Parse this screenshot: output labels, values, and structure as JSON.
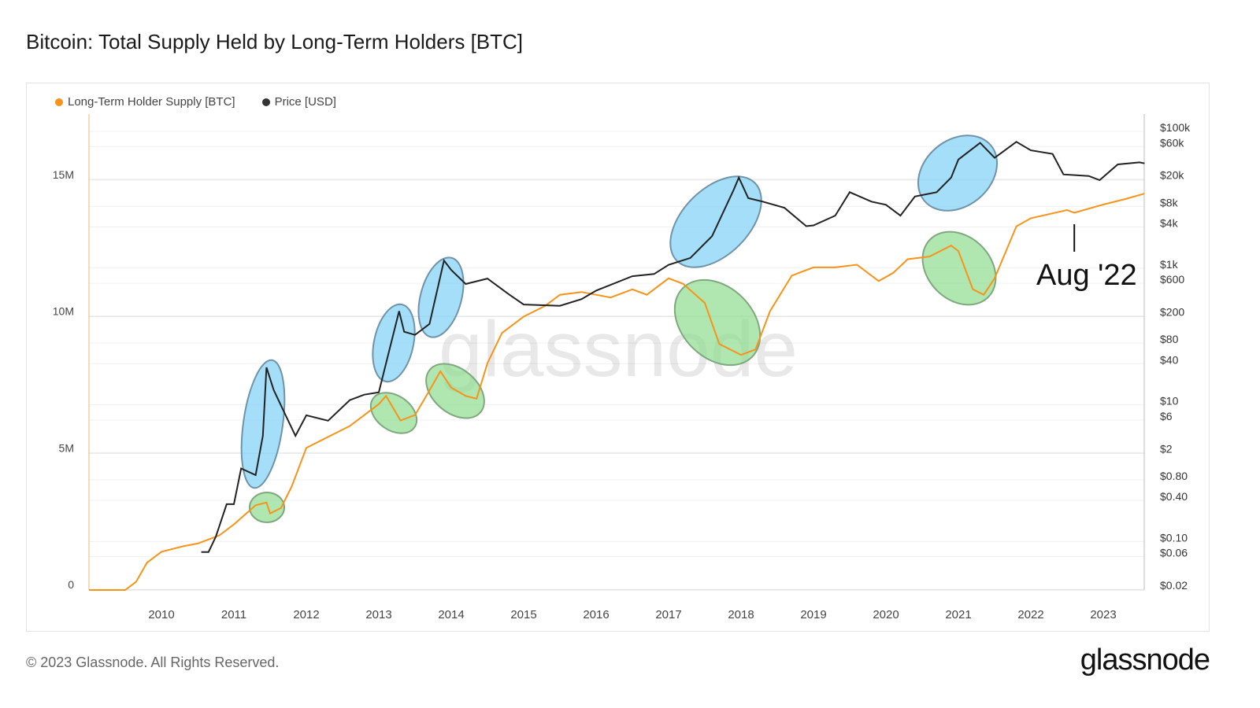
{
  "title": "Bitcoin: Total Supply Held by Long-Term Holders [BTC]",
  "footer": "© 2023 Glassnode. All Rights Reserved.",
  "logo": "glassnode",
  "watermark": "glassnode",
  "colors": {
    "lth": "#f7931a",
    "price": "#222222",
    "blue_highlight": "#7fd0f5",
    "green_highlight": "#8fdc8f"
  },
  "chart_data": {
    "type": "line",
    "title": "Bitcoin: Total Supply Held by Long-Term Holders [BTC]",
    "legend_position": "top-left",
    "grid": true,
    "x_ticks": [
      "2010",
      "2011",
      "2012",
      "2013",
      "2014",
      "2015",
      "2016",
      "2017",
      "2018",
      "2019",
      "2020",
      "2021",
      "2022",
      "2023"
    ],
    "xlim": [
      2009.0,
      2023.57
    ],
    "y_left": {
      "ticks": [
        "0",
        "5M",
        "10M",
        "15M"
      ],
      "ylim": [
        0,
        17.4
      ],
      "unit": "M BTC"
    },
    "y_right": {
      "scale": "log",
      "ticks": [
        "$100k",
        "$60k",
        "$20k",
        "$8k",
        "$4k",
        "$1k",
        "$600",
        "$200",
        "$80",
        "$40",
        "$10",
        "$6",
        "$2",
        "$0.80",
        "$0.40",
        "$0.10",
        "$0.06",
        "$0.02"
      ],
      "tick_values": [
        100000,
        60000,
        20000,
        8000,
        4000,
        1000,
        600,
        200,
        80,
        40,
        10,
        6,
        2,
        0.8,
        0.4,
        0.1,
        0.06,
        0.02
      ],
      "ylim": [
        0.02,
        100000
      ]
    },
    "series": [
      {
        "name": "Long-Term Holder Supply [BTC]",
        "axis": "left",
        "x": [
          2009.0,
          2009.5,
          2009.65,
          2009.8,
          2010.0,
          2010.3,
          2010.5,
          2010.8,
          2011.0,
          2011.3,
          2011.45,
          2011.5,
          2011.65,
          2011.8,
          2012.0,
          2012.3,
          2012.6,
          2013.0,
          2013.1,
          2013.3,
          2013.5,
          2013.7,
          2013.85,
          2014.0,
          2014.2,
          2014.35,
          2014.5,
          2014.7,
          2015.0,
          2015.3,
          2015.5,
          2015.8,
          2016.0,
          2016.2,
          2016.5,
          2016.7,
          2017.0,
          2017.2,
          2017.5,
          2017.7,
          2018.0,
          2018.2,
          2018.4,
          2018.7,
          2019.0,
          2019.3,
          2019.6,
          2019.9,
          2020.1,
          2020.3,
          2020.6,
          2020.9,
          2021.0,
          2021.2,
          2021.35,
          2021.5,
          2021.8,
          2022.0,
          2022.5,
          2022.6,
          2023.0,
          2023.3,
          2023.57
        ],
        "values": [
          0,
          0,
          0.3,
          1.0,
          1.4,
          1.6,
          1.7,
          2.0,
          2.4,
          3.1,
          3.2,
          2.8,
          3.0,
          3.8,
          5.2,
          5.6,
          6.0,
          6.8,
          7.1,
          6.2,
          6.4,
          7.3,
          8.0,
          7.4,
          7.1,
          7.0,
          8.3,
          9.4,
          10.0,
          10.4,
          10.8,
          10.9,
          10.8,
          10.7,
          11.0,
          10.8,
          11.4,
          11.2,
          10.5,
          9.0,
          8.6,
          8.8,
          10.2,
          11.5,
          11.8,
          11.8,
          11.9,
          11.3,
          11.6,
          12.1,
          12.2,
          12.6,
          12.4,
          11.0,
          10.8,
          11.4,
          13.3,
          13.6,
          13.9,
          13.8,
          14.1,
          14.3,
          14.5
        ]
      },
      {
        "name": "Price [USD]",
        "axis": "right",
        "x": [
          2010.55,
          2010.65,
          2010.75,
          2010.9,
          2011.0,
          2011.1,
          2011.3,
          2011.4,
          2011.45,
          2011.55,
          2011.75,
          2011.85,
          2012.0,
          2012.3,
          2012.6,
          2012.8,
          2013.0,
          2013.28,
          2013.35,
          2013.5,
          2013.7,
          2013.9,
          2014.0,
          2014.2,
          2014.5,
          2014.8,
          2015.0,
          2015.5,
          2015.8,
          2016.0,
          2016.5,
          2016.8,
          2017.0,
          2017.3,
          2017.6,
          2017.9,
          2017.97,
          2018.1,
          2018.3,
          2018.6,
          2018.9,
          2019.0,
          2019.3,
          2019.5,
          2019.8,
          2020.0,
          2020.2,
          2020.4,
          2020.7,
          2020.9,
          2021.0,
          2021.3,
          2021.5,
          2021.8,
          2022.0,
          2022.3,
          2022.45,
          2022.8,
          2022.95,
          2023.2,
          2023.5,
          2023.57
        ],
        "values": [
          0.06,
          0.06,
          0.1,
          0.3,
          0.3,
          1,
          0.8,
          3,
          30,
          14,
          5,
          3,
          6,
          5,
          10,
          12,
          13,
          200,
          100,
          90,
          130,
          1100,
          800,
          500,
          600,
          350,
          250,
          240,
          300,
          400,
          650,
          700,
          950,
          1200,
          2500,
          12000,
          18000,
          9000,
          8000,
          6500,
          3500,
          3600,
          5000,
          11000,
          8000,
          7200,
          5000,
          9500,
          11000,
          18000,
          33000,
          58000,
          35000,
          60000,
          45000,
          40000,
          20000,
          19000,
          16500,
          28000,
          30000,
          29000
        ]
      }
    ],
    "annotations": [
      {
        "text": "Aug '22",
        "x": 2022.6
      }
    ]
  }
}
